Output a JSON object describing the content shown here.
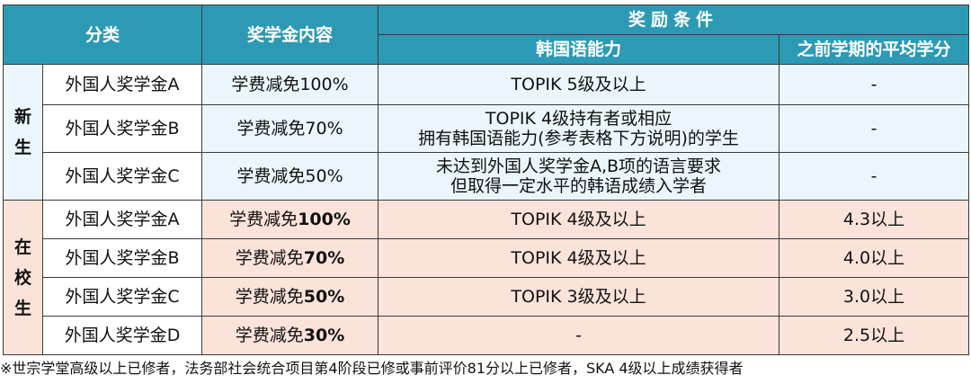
{
  "header": {
    "category": "分类",
    "content": "奖学金内容",
    "conditions": "奖励条件",
    "korean_ability": "韩国语能力",
    "prev_gpa": "之前学期的平均学分"
  },
  "groups": [
    {
      "label": "新生",
      "rows": [
        {
          "name": "外国人奖学金A",
          "benefit": "学费减免100%",
          "korean": [
            "TOPIK  5级及以上"
          ],
          "gpa": "-"
        },
        {
          "name": "外国人奖学金B",
          "benefit": "学费减免70%",
          "korean": [
            "TOPIK  4级持有者或相应",
            "拥有韩国语能力(参考表格下方说明)的学生"
          ],
          "gpa": "-"
        },
        {
          "name": "外国人奖学金C",
          "benefit": "学费减免50%",
          "korean": [
            "未达到外国人奖学金A,B项的语言要求",
            "但取得一定水平的韩语成绩入学者"
          ],
          "gpa": "-"
        }
      ]
    },
    {
      "label": "在校生",
      "rows": [
        {
          "name": "外国人奖学金A",
          "benefit_prefix": "学费减免",
          "benefit_pct": "100%",
          "korean": [
            "TOPIK 4级及以上"
          ],
          "gpa": "4.3以上"
        },
        {
          "name": "外国人奖学金B",
          "benefit_prefix": "学费减免",
          "benefit_pct": "70%",
          "korean": [
            "TOPIK 4级及以上"
          ],
          "gpa": "4.0以上"
        },
        {
          "name": "外国人奖学金C",
          "benefit_prefix": "学费减免",
          "benefit_pct": "50%",
          "korean": [
            "TOPIK 3级及以上"
          ],
          "gpa": "3.0以上"
        },
        {
          "name": "外国人奖学金D",
          "benefit_prefix": "学费减免",
          "benefit_pct": "30%",
          "korean": [
            "-"
          ],
          "gpa": "2.5以上"
        }
      ]
    }
  ],
  "footnote": "※世宗学堂高级以上已修者，法务部社会统合项目第4阶段已修或事前评价81分以上已修者，SKA  4级以上成绩获得者",
  "colors": {
    "header": "#2d9ab5",
    "new_rows": "#eaf6fb",
    "current_rows": "#fbe3da",
    "border": "#3a3a3a"
  }
}
